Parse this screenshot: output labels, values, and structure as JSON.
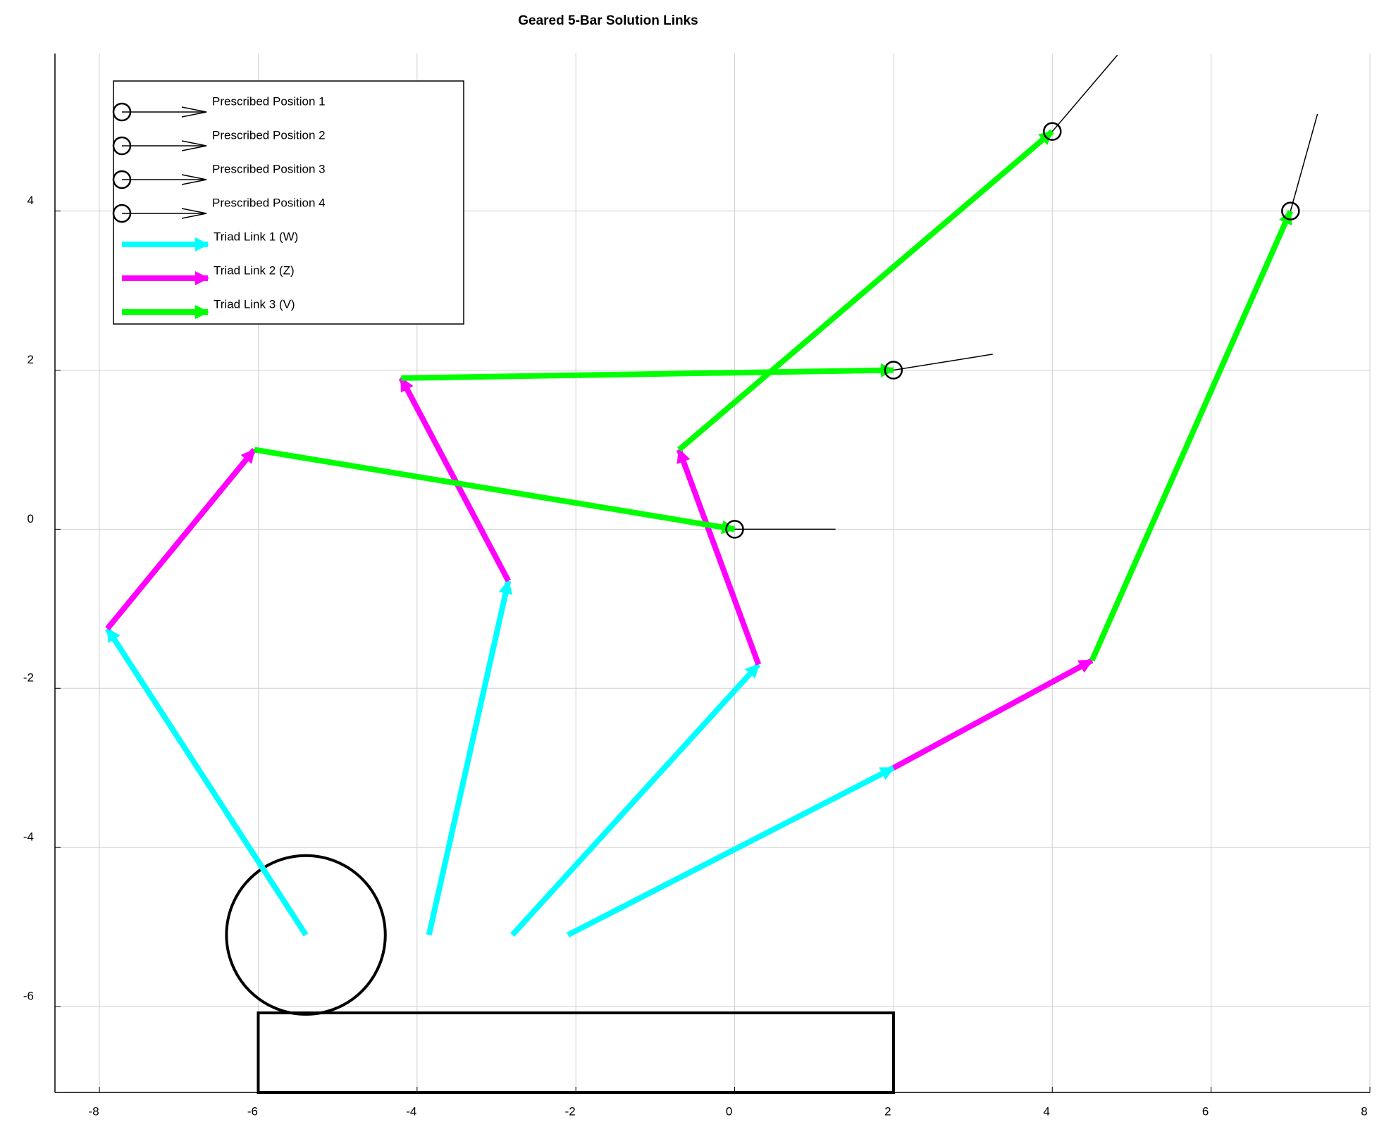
{
  "chart_data": {
    "type": "vector",
    "title": "Geared 5-Bar Solution Links",
    "xlim": [
      -8.56,
      8.0
    ],
    "ylim": [
      -7.08,
      5.98
    ],
    "xticks": [
      -8,
      -6,
      -4,
      -2,
      0,
      2,
      4,
      6,
      8
    ],
    "yticks": [
      -6,
      -4,
      -2,
      0,
      2,
      4
    ],
    "grid": true,
    "legend": "upper-left",
    "positions": [
      {
        "name": "Prescribed Position 1",
        "color": "#000000",
        "x": [
          0,
          1.27
        ],
        "y": [
          0,
          0
        ]
      },
      {
        "name": "Prescribed Position 2",
        "color": "#000000",
        "x": [
          2,
          3.25
        ],
        "y": [
          2,
          2.2
        ]
      },
      {
        "name": "Prescribed Position 3",
        "color": "#000000",
        "x": [
          4,
          4.82
        ],
        "y": [
          5,
          5.96
        ]
      },
      {
        "name": "Prescribed Position 4",
        "color": "#000000",
        "x": [
          7,
          7.34
        ],
        "y": [
          4,
          5.22
        ]
      }
    ],
    "links": [
      {
        "name": "Triad Link 1 (W)",
        "color": "#00ffff",
        "x0": [
          -5.4,
          -3.85,
          -2.8,
          -2.1
        ],
        "y0": [
          -5.1,
          -5.1,
          -5.1,
          -5.1
        ],
        "x1": [
          -7.9,
          -2.85,
          0.3,
          2
        ],
        "y1": [
          -1.25,
          -0.65,
          -1.7,
          -3
        ]
      },
      {
        "name": "Triad Link 2 (Z)",
        "color": "#ff00ff",
        "x0": [
          -7.9,
          -2.85,
          0.3,
          2
        ],
        "y0": [
          -1.25,
          -0.65,
          -1.7,
          -3
        ],
        "x1": [
          -6.05,
          -4.2,
          -0.7,
          4.5
        ],
        "y1": [
          1,
          1.9,
          1,
          -1.65
        ]
      },
      {
        "name": "Triad Link 3 (V)",
        "color": "#00ff00",
        "x0": [
          -6.05,
          -4.2,
          -0.7,
          4.5
        ],
        "y0": [
          1,
          1.9,
          1,
          -1.65
        ],
        "x1": [
          0,
          2,
          4,
          7
        ],
        "y1": [
          0,
          2,
          5,
          4
        ]
      }
    ],
    "gear": {
      "center": [
        -5.4,
        -5.1
      ],
      "radius": 1.0
    },
    "base": {
      "x": [
        -6,
        2
      ],
      "y": [
        -7.08,
        -6.08
      ]
    }
  }
}
